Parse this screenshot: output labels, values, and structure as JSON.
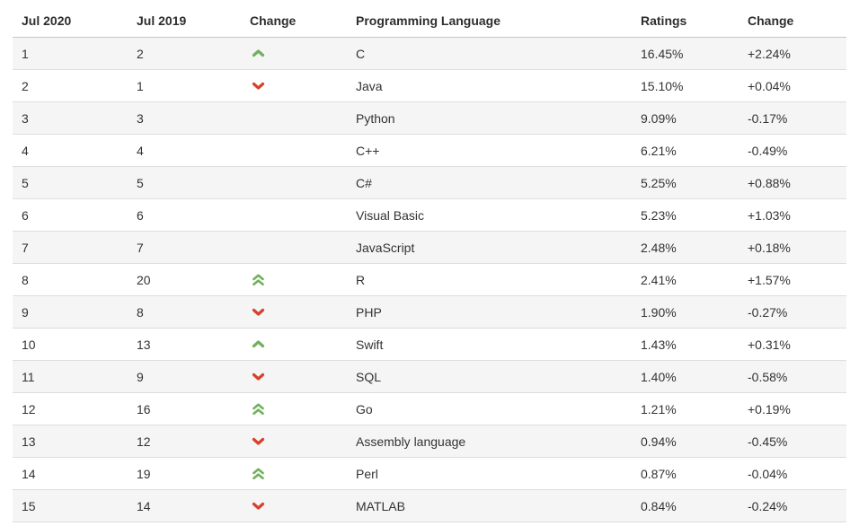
{
  "table": {
    "headers": [
      "Jul 2020",
      "Jul 2019",
      "Change",
      "Programming Language",
      "Ratings",
      "Change"
    ],
    "rows": [
      {
        "rank_2020": "1",
        "rank_2019": "2",
        "change_icon": "chevron-up-icon",
        "language": "C",
        "rating": "16.45%",
        "rating_change": "+2.24%"
      },
      {
        "rank_2020": "2",
        "rank_2019": "1",
        "change_icon": "chevron-down-icon",
        "language": "Java",
        "rating": "15.10%",
        "rating_change": "+0.04%"
      },
      {
        "rank_2020": "3",
        "rank_2019": "3",
        "change_icon": "",
        "language": "Python",
        "rating": "9.09%",
        "rating_change": "-0.17%"
      },
      {
        "rank_2020": "4",
        "rank_2019": "4",
        "change_icon": "",
        "language": "C++",
        "rating": "6.21%",
        "rating_change": "-0.49%"
      },
      {
        "rank_2020": "5",
        "rank_2019": "5",
        "change_icon": "",
        "language": "C#",
        "rating": "5.25%",
        "rating_change": "+0.88%"
      },
      {
        "rank_2020": "6",
        "rank_2019": "6",
        "change_icon": "",
        "language": "Visual Basic",
        "rating": "5.23%",
        "rating_change": "+1.03%"
      },
      {
        "rank_2020": "7",
        "rank_2019": "7",
        "change_icon": "",
        "language": "JavaScript",
        "rating": "2.48%",
        "rating_change": "+0.18%"
      },
      {
        "rank_2020": "8",
        "rank_2019": "20",
        "change_icon": "chevron-double-up-icon",
        "language": "R",
        "rating": "2.41%",
        "rating_change": "+1.57%"
      },
      {
        "rank_2020": "9",
        "rank_2019": "8",
        "change_icon": "chevron-down-icon",
        "language": "PHP",
        "rating": "1.90%",
        "rating_change": "-0.27%"
      },
      {
        "rank_2020": "10",
        "rank_2019": "13",
        "change_icon": "chevron-up-icon",
        "language": "Swift",
        "rating": "1.43%",
        "rating_change": "+0.31%"
      },
      {
        "rank_2020": "11",
        "rank_2019": "9",
        "change_icon": "chevron-down-icon",
        "language": "SQL",
        "rating": "1.40%",
        "rating_change": "-0.58%"
      },
      {
        "rank_2020": "12",
        "rank_2019": "16",
        "change_icon": "chevron-double-up-icon",
        "language": "Go",
        "rating": "1.21%",
        "rating_change": "+0.19%"
      },
      {
        "rank_2020": "13",
        "rank_2019": "12",
        "change_icon": "chevron-down-icon",
        "language": "Assembly language",
        "rating": "0.94%",
        "rating_change": "-0.45%"
      },
      {
        "rank_2020": "14",
        "rank_2019": "19",
        "change_icon": "chevron-double-up-icon",
        "language": "Perl",
        "rating": "0.87%",
        "rating_change": "-0.04%"
      },
      {
        "rank_2020": "15",
        "rank_2019": "14",
        "change_icon": "chevron-down-icon",
        "language": "MATLAB",
        "rating": "0.84%",
        "rating_change": "-0.24%"
      }
    ]
  },
  "colors": {
    "up_green": "#70b15c",
    "down_red": "#d8402b",
    "row_alt_bg": "#f5f5f5",
    "row_border": "#dddddd",
    "header_border": "#c6c6c6",
    "text": "#333333"
  }
}
